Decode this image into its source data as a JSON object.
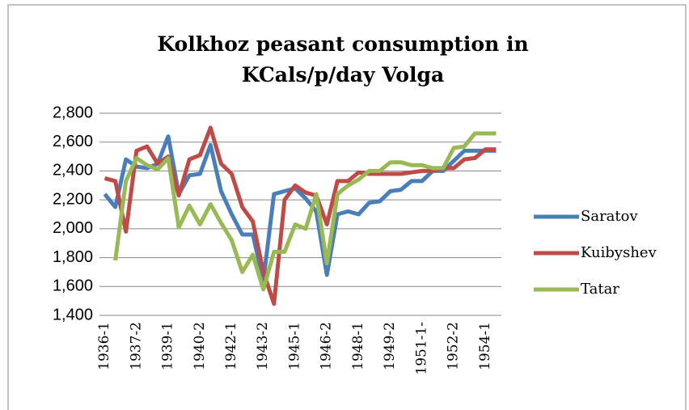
{
  "chart_data": {
    "type": "line",
    "title": "Kolkhoz peasant consumption in KCals/p/day Volga",
    "categories": [
      "1936-1",
      null,
      null,
      "1937-2",
      null,
      null,
      "1939-1",
      null,
      null,
      "1940-2",
      null,
      null,
      "1942-1",
      null,
      null,
      "1943-2",
      null,
      null,
      "1945-1",
      null,
      null,
      "1946-2",
      null,
      null,
      "1948-1",
      null,
      null,
      "1949-2",
      null,
      null,
      "1951-1-",
      null,
      null,
      "1952-2",
      null,
      null,
      "1954-1",
      null
    ],
    "series": [
      {
        "name": "Saratov",
        "color": "#4a7ebb",
        "values": [
          2240,
          2150,
          2480,
          2430,
          2420,
          2450,
          2640,
          2240,
          2370,
          2380,
          2580,
          2260,
          2100,
          1960,
          1960,
          1640,
          2240,
          2260,
          2280,
          2210,
          2120,
          1680,
          2100,
          2120,
          2100,
          2180,
          2190,
          2260,
          2270,
          2330,
          2330,
          2400,
          2400,
          2470,
          2540,
          2540,
          2540,
          2540
        ]
      },
      {
        "name": "Kuibyshev",
        "color": "#be4b48",
        "values": [
          2350,
          2330,
          1980,
          2540,
          2570,
          2450,
          2500,
          2230,
          2480,
          2510,
          2700,
          2450,
          2380,
          2150,
          2050,
          1700,
          1480,
          2200,
          2300,
          2250,
          2230,
          2030,
          2330,
          2330,
          2390,
          2380,
          2380,
          2380,
          2380,
          2390,
          2400,
          2400,
          2420,
          2420,
          2480,
          2490,
          2550,
          2550
        ]
      },
      {
        "name": "Tatar",
        "color": "#98b954",
        "values": [
          null,
          1780,
          2330,
          2490,
          2440,
          2410,
          2490,
          2010,
          2160,
          2030,
          2170,
          2040,
          1920,
          1700,
          1820,
          1580,
          1840,
          1840,
          2030,
          2000,
          2240,
          1760,
          2240,
          2300,
          2340,
          2400,
          2400,
          2460,
          2460,
          2440,
          2440,
          2420,
          2420,
          2560,
          2570,
          2660,
          2660,
          2660
        ]
      }
    ],
    "ylim": [
      1400,
      2800
    ],
    "yticks": [
      {
        "value": 1400,
        "label": "1,400"
      },
      {
        "value": 1600,
        "label": "1,600"
      },
      {
        "value": 1800,
        "label": "1,800"
      },
      {
        "value": 2000,
        "label": "2,000"
      },
      {
        "value": 2200,
        "label": "2,200"
      },
      {
        "value": 2400,
        "label": "2,400"
      },
      {
        "value": 2600,
        "label": "2,600"
      },
      {
        "value": 2800,
        "label": "2,800"
      }
    ],
    "grid": true,
    "legend": "right"
  }
}
